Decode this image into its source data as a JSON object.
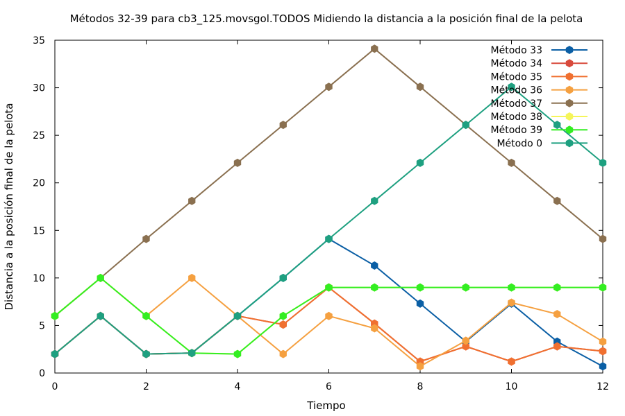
{
  "chart_data": {
    "type": "line",
    "title": "Métodos 32-39 para cb3_125.movsgol.TODOS Midiendo la distancia a la posición final de la pelota",
    "xlabel": "Tiempo",
    "ylabel": "Distancia a la posición final de la pelota",
    "xlim": [
      0,
      12
    ],
    "ylim": [
      0,
      35
    ],
    "xticks": [
      0,
      2,
      4,
      6,
      8,
      10,
      12
    ],
    "yticks": [
      0,
      5,
      10,
      15,
      20,
      25,
      30,
      35
    ],
    "grid": false,
    "legend_position": "top-right",
    "x": [
      0,
      1,
      2,
      3,
      4,
      5,
      6,
      7,
      8,
      9,
      10,
      11,
      12
    ],
    "series": [
      {
        "name": "Método 33",
        "color": "#0b5fa5",
        "values": [
          2,
          6,
          2,
          2.1,
          6,
          10,
          14.1,
          11.3,
          7.3,
          3.3,
          7.3,
          3.3,
          0.7
        ]
      },
      {
        "name": "Método 34",
        "color": "#d84a3c",
        "values": [
          2,
          6,
          2,
          2.1,
          6,
          5.1,
          9,
          5.2,
          1.2,
          2.8,
          1.2,
          2.8,
          2.3
        ]
      },
      {
        "name": "Método 35",
        "color": "#f07030",
        "values": [
          2,
          6,
          2,
          2.1,
          6,
          5.1,
          9,
          5.2,
          1.2,
          2.8,
          1.2,
          2.8,
          2.3
        ]
      },
      {
        "name": "Método 36",
        "color": "#f5a040",
        "values": [
          6,
          10,
          6,
          10,
          6,
          2,
          6,
          4.7,
          0.7,
          3.4,
          7.4,
          6.2,
          3.3
        ]
      },
      {
        "name": "Método 37",
        "color": "#8a7050",
        "values": [
          6,
          10,
          14.1,
          18.1,
          22.1,
          26.1,
          30.1,
          34.1,
          30.1,
          26.1,
          22.1,
          18.1,
          14.1
        ]
      },
      {
        "name": "Método 38",
        "color": "#f5f55a",
        "values": [
          6,
          10,
          6,
          2.1,
          2,
          6,
          9,
          9,
          9,
          9,
          9,
          9,
          9
        ]
      },
      {
        "name": "Método 39",
        "color": "#33ee22",
        "values": [
          6,
          10,
          6,
          2.1,
          2,
          6,
          9,
          9,
          9,
          9,
          9,
          9,
          9
        ]
      },
      {
        "name": "Método 0",
        "color": "#1ea080",
        "values": [
          2,
          6,
          2,
          2.1,
          6,
          10,
          14.1,
          18.1,
          22.1,
          26.1,
          30.1,
          26.1,
          22.1
        ]
      }
    ]
  }
}
